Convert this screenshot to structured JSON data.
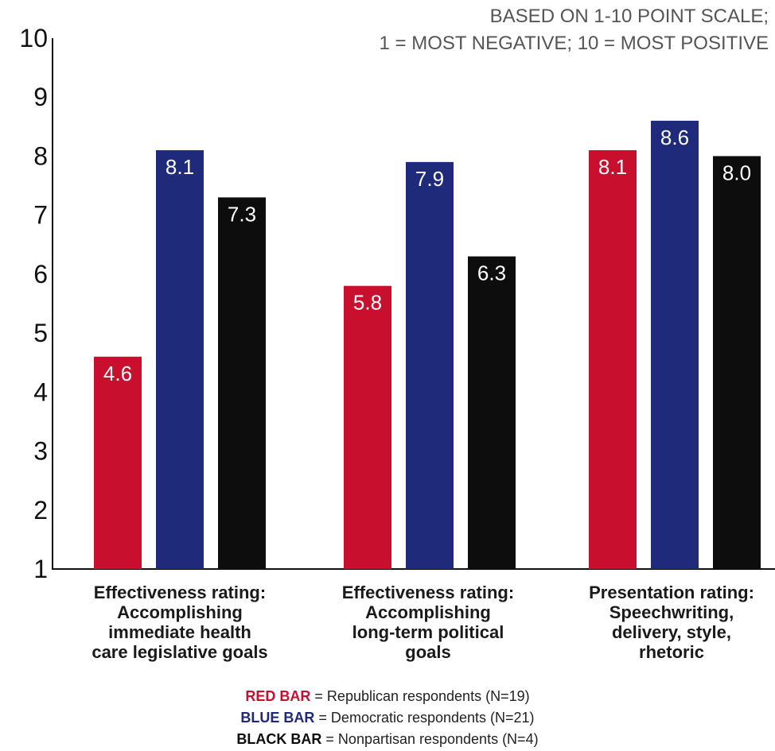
{
  "chart_data": {
    "type": "bar",
    "note_lines": [
      "BASED ON 1-10 POINT SCALE;",
      "1 = MOST NEGATIVE; 10 = MOST POSITIVE"
    ],
    "categories": [
      [
        "Effectiveness rating:",
        "Accomplishing",
        "immediate health",
        "care legislative goals"
      ],
      [
        "Effectiveness rating:",
        "Accomplishing",
        "long-term political",
        "goals"
      ],
      [
        "Presentation rating:",
        "Speechwriting,",
        "delivery, style,",
        "rhetoric"
      ]
    ],
    "series": [
      {
        "color": "#c8102e",
        "values": [
          4.6,
          5.8,
          8.1
        ],
        "labels": [
          "4.6",
          "5.8",
          "8.1"
        ]
      },
      {
        "color": "#1f2a7a",
        "values": [
          8.1,
          7.9,
          8.6
        ],
        "labels": [
          "8.1",
          "7.9",
          "8.6"
        ]
      },
      {
        "color": "#0d0d0d",
        "values": [
          7.3,
          6.3,
          8.0
        ],
        "labels": [
          "7.3",
          "6.3",
          "8.0"
        ]
      }
    ],
    "ylim": [
      1,
      10
    ],
    "yticks": [
      "1",
      "2",
      "3",
      "4",
      "5",
      "6",
      "7",
      "8",
      "9",
      "10"
    ],
    "grid": false,
    "legend": [
      {
        "key": "RED BAR",
        "text": " = Republican respondents (N=19)",
        "color": "#c8102e"
      },
      {
        "key": "BLUE BAR",
        "text": " = Democratic respondents (N=21)",
        "color": "#1f2a7a"
      },
      {
        "key": "BLACK BAR",
        "text": " = Nonpartisan respondents (N=4)",
        "color": "#0d0d0d"
      }
    ],
    "legend_placement": "bottom"
  }
}
